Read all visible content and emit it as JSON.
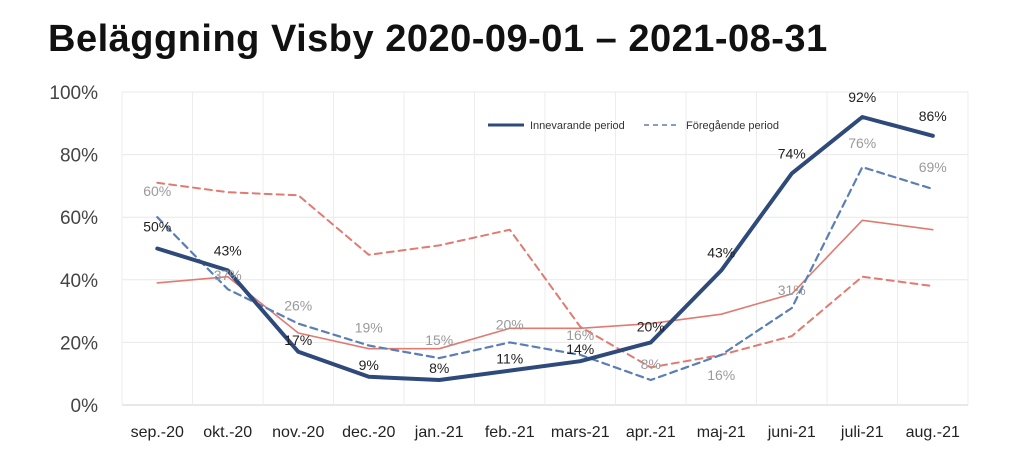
{
  "chart_data": {
    "type": "line",
    "title": "Beläggning Visby 2020-09-01 – 2021-08-31",
    "xlabel": "",
    "ylabel": "",
    "ylim": [
      0,
      100
    ],
    "yticks": [
      "0%",
      "20%",
      "40%",
      "60%",
      "80%",
      "100%"
    ],
    "grid": true,
    "legend_position": "top-right",
    "categories": [
      "sep.-20",
      "okt.-20",
      "nov.-20",
      "dec.-20",
      "jan.-21",
      "feb.-21",
      "mars-21",
      "apr.-21",
      "maj-21",
      "juni-21",
      "juli-21",
      "aug.-21"
    ],
    "series": [
      {
        "name": "Innevarande period",
        "style": "solid-thick",
        "color": "#2e4a7a",
        "values": [
          50,
          43,
          17,
          9,
          8,
          11,
          14,
          20,
          43,
          74,
          92,
          86
        ],
        "labels": [
          "50%",
          "43%",
          "17%",
          "9%",
          "8%",
          "11%",
          "14%",
          "20%",
          "43%",
          "74%",
          "92%",
          "86%"
        ]
      },
      {
        "name": "Föregående period",
        "style": "dashed",
        "color": "#5b7fb5",
        "values": [
          60,
          37,
          26,
          19,
          15,
          20,
          16,
          8,
          16,
          31,
          76,
          69
        ],
        "labels": [
          "60%",
          "37%",
          "26%",
          "19%",
          "15%",
          "20%",
          "16%",
          "8%",
          "16%",
          "31%",
          "76%",
          "69%"
        ]
      },
      {
        "name": "",
        "style": "solid-thin",
        "color": "#e07b72",
        "values": [
          39,
          41,
          23,
          18,
          18,
          24.5,
          24.5,
          26,
          29,
          35.5,
          59,
          56
        ]
      },
      {
        "name": "",
        "style": "dashed",
        "color": "#e07b72",
        "values": [
          71,
          68,
          67,
          48,
          51,
          56,
          25,
          12,
          16,
          22,
          41,
          38
        ]
      }
    ]
  }
}
